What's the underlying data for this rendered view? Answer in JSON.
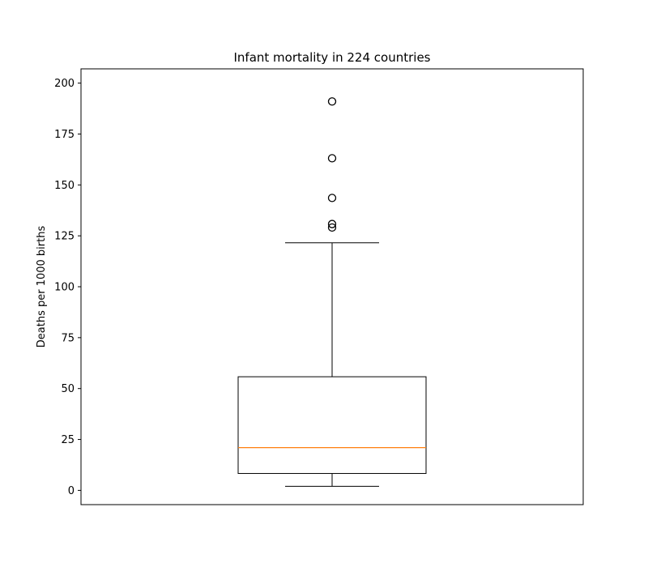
{
  "chart_data": {
    "type": "box",
    "title": "Infant mortality in 224 countries",
    "xlabel": "",
    "ylabel": "Deaths per 1000 births",
    "ylim": [
      -7,
      207
    ],
    "yticks": [
      0,
      25,
      50,
      75,
      100,
      125,
      150,
      175,
      200
    ],
    "grid": false,
    "box": {
      "whisker_low": 2,
      "q1": 8.3,
      "median": 21,
      "q3": 55.8,
      "whisker_high": 121.6,
      "outliers": [
        191,
        163.1,
        143.6,
        130.8,
        129.1
      ]
    },
    "colors": {
      "box": "#000000",
      "median": "#ff7f0e",
      "outlier_marker": "#000000"
    }
  }
}
